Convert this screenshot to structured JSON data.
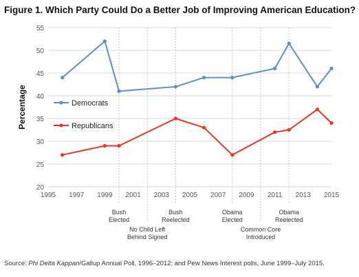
{
  "title": "Figure 1. Which Party Could Do a Better Job of Improving American Education?",
  "source": {
    "prefix": "Source: ",
    "italic": "Phi Delta Kappan",
    "rest": "/Gallup Annual Poll, 1996–2012; and Pew News Interest polls, June 1999–July 2015."
  },
  "colors": {
    "democrats": "#5b8fd0",
    "republicans": "#ee3322",
    "grid": "#d9d9d9",
    "event_line": "#bbbbbb"
  },
  "chart_data": {
    "type": "line",
    "ylabel": "Percentage",
    "xlim": [
      1995,
      2015
    ],
    "ylim": [
      20,
      55
    ],
    "xticks": [
      1995,
      1997,
      1999,
      2001,
      2003,
      2005,
      2007,
      2009,
      2011,
      2013,
      2015
    ],
    "yticks": [
      20,
      25,
      30,
      35,
      40,
      45,
      50,
      55
    ],
    "grid": "horizontal",
    "legend_position": "left",
    "series": [
      {
        "name": "Democrats",
        "color": "#5b8fd0",
        "points": [
          [
            1996,
            44
          ],
          [
            1999,
            52
          ],
          [
            2000,
            41
          ],
          [
            2004,
            42
          ],
          [
            2006,
            44
          ],
          [
            2008,
            44
          ],
          [
            2011,
            46
          ],
          [
            2012,
            51.5
          ],
          [
            2014,
            42
          ],
          [
            2015,
            46
          ]
        ]
      },
      {
        "name": "Republicans",
        "color": "#ee3322",
        "points": [
          [
            1996,
            27
          ],
          [
            1999,
            29
          ],
          [
            2000,
            29
          ],
          [
            2004,
            35
          ],
          [
            2006,
            33
          ],
          [
            2008,
            27
          ],
          [
            2011,
            32
          ],
          [
            2012,
            32.5
          ],
          [
            2014,
            37
          ],
          [
            2015,
            34
          ]
        ]
      }
    ],
    "annotations": [
      {
        "x": 2000,
        "lines": [
          "Bush",
          "Elected"
        ],
        "level": 1
      },
      {
        "x": 2002,
        "lines": [
          "No Child Left",
          "Behind Signed"
        ],
        "level": 2
      },
      {
        "x": 2004,
        "lines": [
          "Bush",
          "Reelected"
        ],
        "level": 1
      },
      {
        "x": 2008,
        "lines": [
          "Obama",
          "Elected"
        ],
        "level": 1
      },
      {
        "x": 2010,
        "lines": [
          "Common Core",
          "Introduced"
        ],
        "level": 2
      },
      {
        "x": 2012,
        "lines": [
          "Obama",
          "Reelected"
        ],
        "level": 1
      }
    ]
  }
}
